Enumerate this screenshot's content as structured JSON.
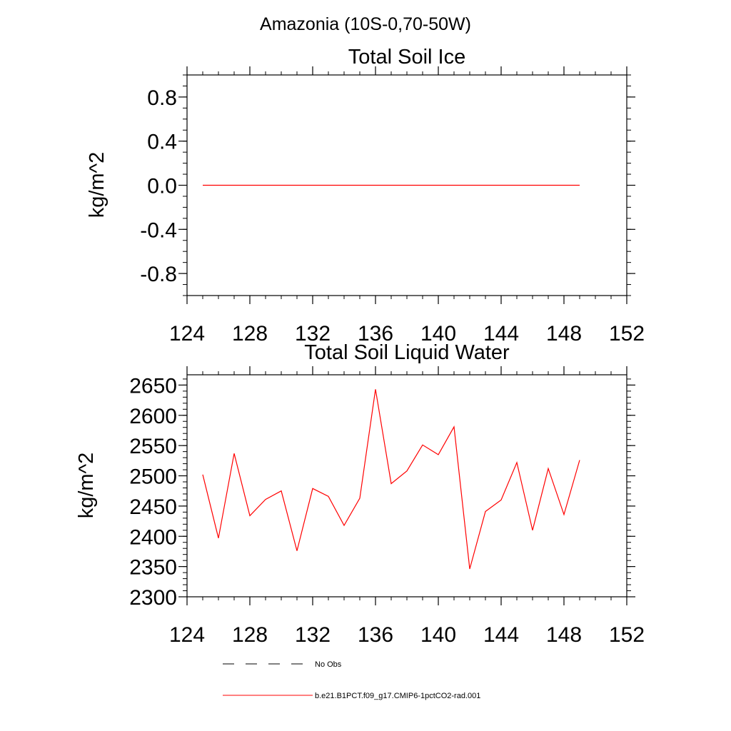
{
  "figure": {
    "main_title": "Amazonia (10S-0,70-50W)"
  },
  "legend": {
    "entries": [
      {
        "label": "No Obs",
        "style": "dashed",
        "color": "#000000"
      },
      {
        "label": "b.e21.B1PCT.f09_g17.CMIP6-1pctCO2-rad.001",
        "style": "solid",
        "color": "#ff0000"
      }
    ]
  },
  "chart_data": [
    {
      "type": "line",
      "title": "Total Soil Ice",
      "xlabel": "",
      "ylabel": "kg/m^2",
      "xlim": [
        124,
        152
      ],
      "ylim": [
        -1.0,
        1.0
      ],
      "xticks": [
        124,
        128,
        132,
        136,
        140,
        144,
        148,
        152
      ],
      "xtick_labels": [
        "124",
        "128",
        "132",
        "136",
        "140",
        "144",
        "148",
        "152"
      ],
      "yticks": [
        -0.8,
        -0.4,
        0.0,
        0.4,
        0.8
      ],
      "ytick_labels": [
        "-0.8",
        "-0.4",
        "0.0",
        "0.4",
        "0.8"
      ],
      "grid": false,
      "series": [
        {
          "color": "#ff0000",
          "x": [
            125,
            126,
            127,
            128,
            129,
            130,
            131,
            132,
            133,
            134,
            135,
            136,
            137,
            138,
            139,
            140,
            141,
            142,
            143,
            144,
            145,
            146,
            147,
            148,
            149
          ],
          "y": [
            0,
            0,
            0,
            0,
            0,
            0,
            0,
            0,
            0,
            0,
            0,
            0,
            0,
            0,
            0,
            0,
            0,
            0,
            0,
            0,
            0,
            0,
            0,
            0,
            0
          ]
        }
      ]
    },
    {
      "type": "line",
      "title": "Total Soil Liquid Water",
      "xlabel": "",
      "ylabel": "kg/m^2",
      "xlim": [
        124,
        152
      ],
      "ylim": [
        2300,
        2667
      ],
      "xticks": [
        124,
        128,
        132,
        136,
        140,
        144,
        148,
        152
      ],
      "xtick_labels": [
        "124",
        "128",
        "132",
        "136",
        "140",
        "144",
        "148",
        "152"
      ],
      "yticks": [
        2300,
        2350,
        2400,
        2450,
        2500,
        2550,
        2600,
        2650
      ],
      "ytick_labels": [
        "2300",
        "2350",
        "2400",
        "2450",
        "2500",
        "2550",
        "2600",
        "2650"
      ],
      "grid": false,
      "series": [
        {
          "color": "#ff0000",
          "x": [
            125,
            126,
            127,
            128,
            129,
            130,
            131,
            132,
            133,
            134,
            135,
            136,
            137,
            138,
            139,
            140,
            141,
            142,
            143,
            144,
            145,
            146,
            147,
            148,
            149
          ],
          "y": [
            2502,
            2397,
            2537,
            2434,
            2461,
            2475,
            2376,
            2479,
            2466,
            2418,
            2463,
            2643,
            2487,
            2508,
            2551,
            2535,
            2581,
            2346,
            2441,
            2460,
            2522,
            2410,
            2512,
            2436,
            2526
          ]
        }
      ]
    }
  ]
}
